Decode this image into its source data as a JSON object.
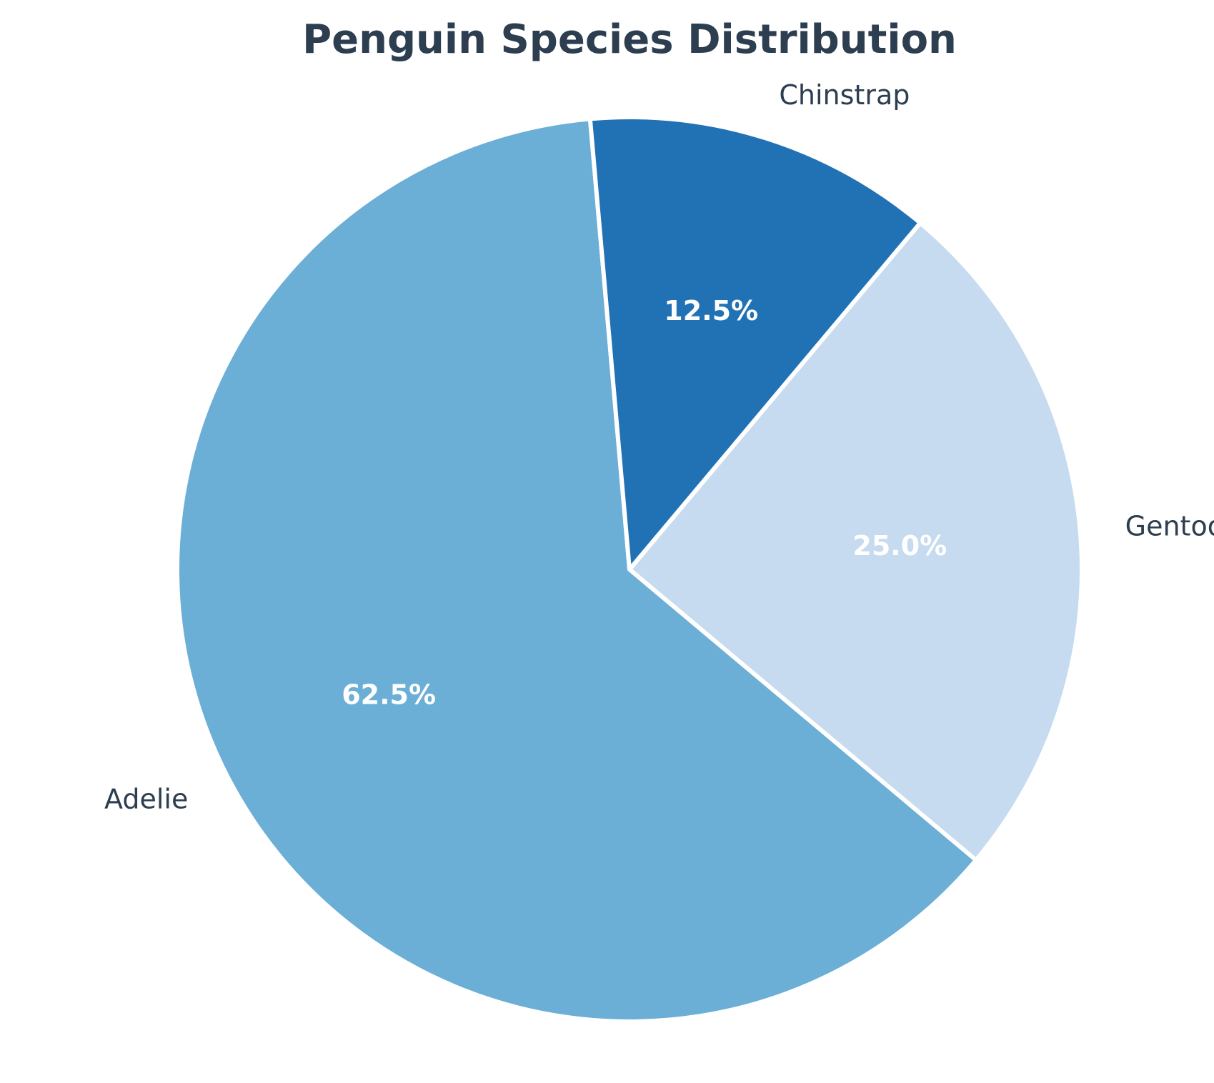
{
  "chart_data": {
    "type": "pie",
    "title": "Penguin Species Distribution",
    "categories": [
      "Adelie",
      "Gentoo",
      "Chinstrap"
    ],
    "values": [
      62.5,
      25.0,
      12.5
    ],
    "percent_labels": [
      "62.5%",
      "25.0%",
      "12.5%"
    ],
    "colors": [
      "#6baed6",
      "#c6dbef",
      "#2171b5"
    ],
    "start_angle_deg": 95,
    "direction": "counterclockwise",
    "wedge_edge_color": "#ffffff",
    "title_color": "#2c3e50",
    "label_color": "#2c3e50",
    "percent_label_color": "#ffffff"
  }
}
